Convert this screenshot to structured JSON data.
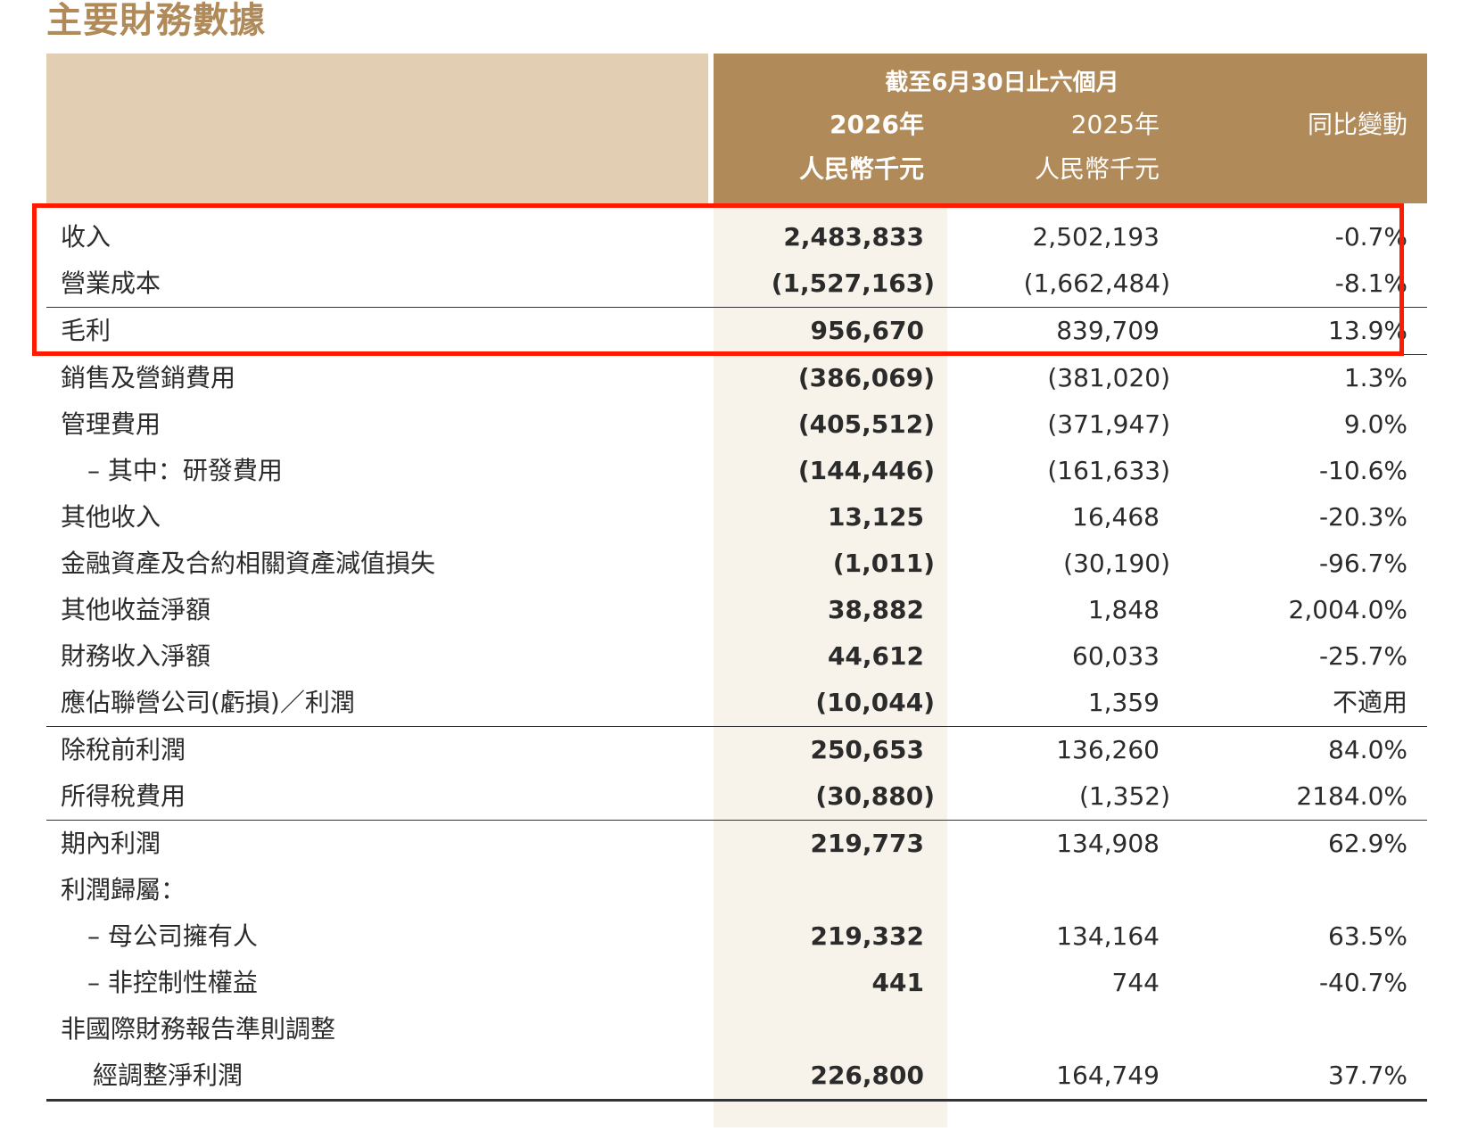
{
  "page_title": "主要財務數據",
  "header": {
    "period": "截至6月30日止六個月",
    "col_2026_year": "2026年",
    "col_2026_unit": "人民幣千元",
    "col_2025_year": "2025年",
    "col_2025_unit": "人民幣千元",
    "col_change": "同比變動"
  },
  "rows": [
    {
      "label": "收入",
      "v2026": "2,483,833",
      "v2025": "2,502,193",
      "change": "-0.7%"
    },
    {
      "label": "營業成本",
      "v2026": "(1,527,163)",
      "v2025": "(1,662,484)",
      "change": "-8.1%"
    },
    {
      "label": "毛利",
      "v2026": "956,670",
      "v2025": "839,709",
      "change": "13.9%"
    },
    {
      "label": "銷售及營銷費用",
      "v2026": "(386,069)",
      "v2025": "(381,020)",
      "change": "1.3%"
    },
    {
      "label": "管理費用",
      "v2026": "(405,512)",
      "v2025": "(371,947)",
      "change": "9.0%"
    },
    {
      "label": "– 其中：研發費用",
      "v2026": "(144,446)",
      "v2025": "(161,633)",
      "change": "-10.6%"
    },
    {
      "label": "其他收入",
      "v2026": "13,125",
      "v2025": "16,468",
      "change": "-20.3%"
    },
    {
      "label": "金融資產及合約相關資產減值損失",
      "v2026": "(1,011)",
      "v2025": "(30,190)",
      "change": "-96.7%"
    },
    {
      "label": "其他收益淨額",
      "v2026": "38,882",
      "v2025": "1,848",
      "change": "2,004.0%"
    },
    {
      "label": "財務收入淨額",
      "v2026": "44,612",
      "v2025": "60,033",
      "change": "-25.7%"
    },
    {
      "label": "應佔聯營公司(虧損)／利潤",
      "v2026": "(10,044)",
      "v2025": "1,359",
      "change": "不適用"
    },
    {
      "label": "除稅前利潤",
      "v2026": "250,653",
      "v2025": "136,260",
      "change": "84.0%"
    },
    {
      "label": "所得稅費用",
      "v2026": "(30,880)",
      "v2025": "(1,352)",
      "change": "2184.0%"
    },
    {
      "label": "期內利潤",
      "v2026": "219,773",
      "v2025": "134,908",
      "change": "62.9%"
    },
    {
      "label": "利潤歸屬：",
      "v2026": "",
      "v2025": "",
      "change": ""
    },
    {
      "label": "– 母公司擁有人",
      "v2026": "219,332",
      "v2025": "134,164",
      "change": "63.5%"
    },
    {
      "label": "– 非控制性權益",
      "v2026": "441",
      "v2025": "744",
      "change": "-40.7%"
    },
    {
      "label": "非國際財務報告準則調整",
      "v2026": "",
      "v2025": "",
      "change": ""
    },
    {
      "label": "經調整淨利潤",
      "v2026": "226,800",
      "v2025": "164,749",
      "change": "37.7%"
    }
  ],
  "colors": {
    "title": "#b08a58",
    "header_dark": "#b08a58",
    "header_light": "#e2cfb3",
    "column_shade": "#f8f3ea",
    "highlight_border": "#ff1a00"
  }
}
